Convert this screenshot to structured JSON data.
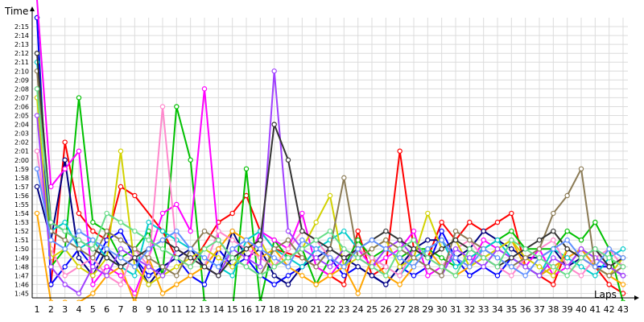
{
  "chart_data": {
    "type": "line",
    "title": "",
    "xlabel": "Laps",
    "ylabel": "Time",
    "grid": true,
    "legend": "none",
    "x_ticks": [
      1,
      2,
      3,
      4,
      5,
      6,
      7,
      8,
      9,
      10,
      11,
      12,
      13,
      14,
      15,
      16,
      17,
      18,
      19,
      20,
      21,
      22,
      23,
      24,
      25,
      26,
      27,
      28,
      29,
      30,
      31,
      32,
      33,
      34,
      35,
      36,
      37,
      38,
      39,
      40,
      41,
      42,
      43
    ],
    "y_ticks": [
      "1:45",
      "1:46",
      "1:47",
      "1:48",
      "1:49",
      "1:50",
      "1:51",
      "1:52",
      "1:53",
      "1:54",
      "1:55",
      "1:56",
      "1:57",
      "1:58",
      "1:59",
      "2:00",
      "2:01",
      "2:02",
      "2:03",
      "2:04",
      "2:05",
      "2:06",
      "2:07",
      "2:08",
      "2:09",
      "2:10",
      "2:11",
      "2:12",
      "2:13",
      "2:14",
      "2:15"
    ],
    "ylim_seconds": [
      104.5,
      136
    ],
    "series": [
      {
        "color": "#ff0000",
        "values": [
          null,
          106,
          122,
          114,
          112,
          111,
          117,
          116,
          null,
          112,
          109,
          108,
          null,
          113,
          114,
          116,
          112,
          110,
          null,
          109,
          108,
          107,
          106,
          112,
          107,
          108,
          121,
          110,
          109,
          113,
          111,
          113,
          112,
          113,
          114,
          108,
          107,
          106,
          110,
          109,
          108,
          106,
          105
        ]
      },
      {
        "color": "#00c000",
        "values": [
          136,
          108,
          110,
          127,
          113,
          112,
          109,
          110,
          112,
          107,
          126,
          120,
          104,
          102,
          103,
          119,
          104,
          111,
          109,
          110,
          106,
          109,
          108,
          111,
          109,
          110,
          109,
          110,
          110,
          109,
          108,
          109,
          110,
          111,
          112,
          110,
          110,
          110,
          112,
          111,
          113,
          110,
          104
        ]
      },
      {
        "color": "#0000ff",
        "values": [
          136,
          106,
          108,
          110,
          108,
          111,
          112,
          109,
          107,
          108,
          109,
          107,
          106,
          110,
          108,
          109,
          107,
          106,
          107,
          108,
          110,
          109,
          107,
          108,
          107,
          106,
          108,
          107,
          108,
          112,
          109,
          107,
          108,
          107,
          109,
          108,
          107,
          108,
          109,
          110,
          108,
          108,
          107
        ]
      },
      {
        "color": "#000080",
        "values": [
          117,
          111,
          120,
          109,
          107,
          110,
          108,
          109,
          106,
          108,
          109,
          110,
          108,
          107,
          112,
          109,
          110,
          107,
          106,
          108,
          109,
          110,
          109,
          108,
          107,
          106,
          108,
          110,
          111,
          111,
          109,
          110,
          112,
          111,
          110,
          109,
          109,
          110,
          108,
          109,
          110,
          108,
          107
        ]
      },
      {
        "color": "#ff00ff",
        "values": [
          138,
          117,
          119,
          121,
          106,
          108,
          107,
          105,
          109,
          114,
          115,
          112,
          128,
          111,
          109,
          108,
          112,
          111,
          110,
          114,
          108,
          107,
          109,
          110,
          108,
          109,
          110,
          112,
          107,
          108,
          109,
          108,
          111,
          110,
          109,
          108,
          110,
          107,
          108,
          110,
          109,
          108,
          107
        ]
      },
      {
        "color": "#ffa500",
        "values": [
          114,
          104,
          104,
          104,
          105,
          107,
          108,
          104,
          109,
          105,
          106,
          107,
          108,
          110,
          112,
          111,
          109,
          110,
          108,
          107,
          106,
          107,
          108,
          105,
          109,
          107,
          106,
          108,
          110,
          108,
          107,
          108,
          109,
          110,
          111,
          108,
          107,
          108,
          109,
          110,
          108,
          107,
          106
        ]
      },
      {
        "color": "#00cccc",
        "values": [
          131,
          112,
          113,
          110,
          111,
          109,
          108,
          107,
          113,
          112,
          111,
          110,
          109,
          108,
          107,
          111,
          112,
          110,
          109,
          108,
          110,
          111,
          112,
          110,
          109,
          108,
          107,
          109,
          110,
          111,
          108,
          109,
          110,
          111,
          109,
          108,
          107,
          110,
          109,
          108,
          107,
          109,
          110
        ]
      },
      {
        "color": "#ff88cc",
        "values": [
          121,
          110,
          107,
          108,
          109,
          107,
          106,
          110,
          108,
          126,
          110,
          109,
          108,
          112,
          111,
          110,
          109,
          108,
          110,
          112,
          111,
          109,
          108,
          110,
          109,
          108,
          107,
          110,
          109,
          108,
          110,
          111,
          109,
          108,
          107,
          109,
          110,
          111,
          108,
          107,
          109,
          110,
          108
        ]
      },
      {
        "color": "#d2d200",
        "values": [
          127,
          109,
          110,
          108,
          107,
          109,
          121,
          108,
          106,
          107,
          108,
          109,
          110,
          109,
          108,
          110,
          111,
          108,
          109,
          110,
          113,
          116,
          108,
          109,
          110,
          111,
          108,
          109,
          114,
          110,
          111,
          108,
          109,
          110,
          111,
          109,
          108,
          107,
          110,
          109,
          108,
          107,
          109
        ]
      },
      {
        "color": "#a040ff",
        "values": [
          125,
          108,
          106,
          105,
          108,
          107,
          110,
          109,
          108,
          107,
          110,
          109,
          108,
          107,
          110,
          109,
          108,
          130,
          112,
          110,
          109,
          108,
          110,
          109,
          108,
          110,
          111,
          109,
          108,
          107,
          110,
          109,
          108,
          110,
          109,
          108,
          107,
          109,
          108,
          110,
          109,
          108,
          107
        ]
      },
      {
        "color": "#8b7b55",
        "values": [
          130,
          112,
          111,
          110,
          109,
          112,
          111,
          110,
          109,
          108,
          107,
          110,
          112,
          111,
          109,
          108,
          107,
          110,
          111,
          109,
          108,
          110,
          118,
          109,
          110,
          111,
          110,
          109,
          108,
          107,
          112,
          111,
          110,
          109,
          108,
          109,
          110,
          114,
          116,
          119,
          108,
          107,
          108
        ]
      },
      {
        "color": "#333333",
        "values": [
          132,
          113,
          112,
          111,
          110,
          109,
          108,
          109,
          110,
          111,
          110,
          109,
          108,
          107,
          109,
          110,
          111,
          124,
          120,
          112,
          111,
          110,
          109,
          110,
          111,
          112,
          111,
          110,
          109,
          110,
          111,
          110,
          109,
          108,
          109,
          110,
          111,
          112,
          110,
          109,
          110,
          108,
          109
        ]
      },
      {
        "color": "#6090ff",
        "values": [
          119,
          111,
          110,
          112,
          111,
          110,
          109,
          108,
          110,
          111,
          112,
          110,
          109,
          108,
          110,
          111,
          110,
          109,
          108,
          111,
          110,
          109,
          108,
          110,
          111,
          110,
          109,
          108,
          110,
          111,
          109,
          108,
          110,
          109,
          108,
          107,
          109,
          110,
          111,
          109,
          108,
          110,
          109
        ]
      },
      {
        "color": "#66dd88",
        "values": [
          128,
          113,
          112,
          111,
          110,
          114,
          113,
          112,
          111,
          110,
          109,
          108,
          110,
          111,
          109,
          108,
          107,
          108,
          109,
          110,
          111,
          112,
          110,
          109,
          108,
          107,
          110,
          111,
          109,
          108,
          107,
          110,
          109,
          108,
          111,
          110,
          109,
          108,
          107,
          109,
          110,
          109,
          108
        ]
      }
    ]
  }
}
